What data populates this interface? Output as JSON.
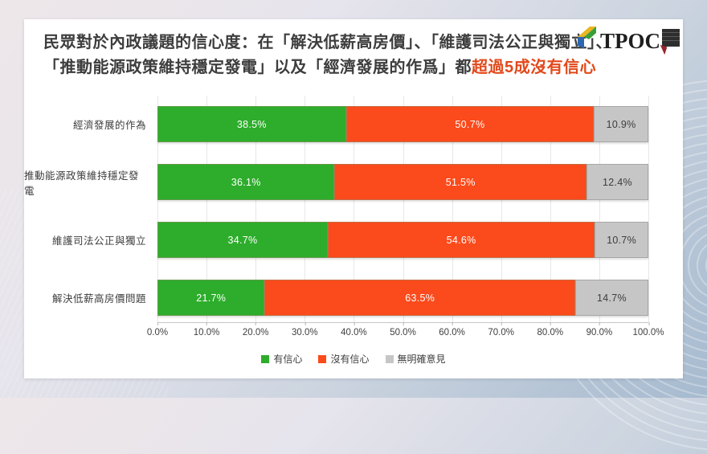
{
  "title": {
    "line1": "民眾對於內政議題的信心度：在「解決低薪高房價」、「維護司法公正與獨立」、",
    "line2_prefix": "「推動能源政策維持穩定發電」以及「經濟發展的作爲」都",
    "line2_highlight": "超過5成沒有信心",
    "highlight_color": "#e2491b"
  },
  "logo": {
    "text": "TPOC"
  },
  "chart_data": {
    "type": "bar",
    "orientation": "horizontal-stacked",
    "categories": [
      "經濟發展的作為",
      "推動能源政策維持穩定發電",
      "維護司法公正與獨立",
      "解決低薪高房價問題"
    ],
    "series": [
      {
        "name": "有信心",
        "color": "#2dad2b",
        "text_color": "#ffffff",
        "values": [
          38.5,
          36.1,
          34.7,
          21.7
        ]
      },
      {
        "name": "沒有信心",
        "color": "#fb4a1b",
        "text_color": "#ffffff",
        "values": [
          50.7,
          51.5,
          54.6,
          63.5
        ]
      },
      {
        "name": "無明確意見",
        "color": "#c6c6c6",
        "text_color": "#3d3d3d",
        "values": [
          10.9,
          12.4,
          10.7,
          14.7
        ]
      }
    ],
    "x_ticks": [
      "0.0%",
      "10.0%",
      "20.0%",
      "30.0%",
      "40.0%",
      "50.0%",
      "60.0%",
      "70.0%",
      "80.0%",
      "90.0%",
      "100.0%"
    ],
    "xlim": [
      0,
      100
    ],
    "grid": true,
    "legend_position": "bottom"
  }
}
